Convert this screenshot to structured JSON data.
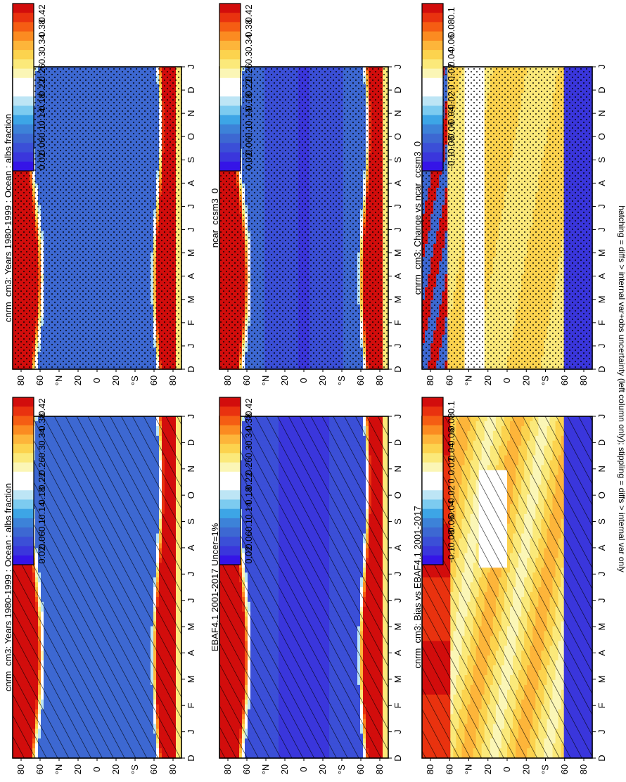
{
  "figure": {
    "footnote": "hatching = diffs > internal var+obs uncertainty (left column only); stippling = diffs > internal var only"
  },
  "chart_data": [
    {
      "type": "heatmap",
      "title": "cnrm_cm3: Years 1980-1999 : Ocean : albs fraction",
      "field": "albedo",
      "overlay": "hatching",
      "x_labels": [
        "D",
        "J",
        "F",
        "M",
        "A",
        "M",
        "J",
        "J",
        "A",
        "S",
        "O",
        "N",
        "D",
        "J"
      ],
      "y_labels": [
        "80",
        "60",
        "°N",
        "20",
        "0",
        "20",
        "°S",
        "60",
        "80"
      ],
      "colorbar": {
        "labels": [
          "0.42",
          "0.38",
          "0.34",
          "0.3",
          "0.26",
          "0.22",
          "0.18",
          "0.14",
          "0.1",
          "0.06",
          "0.02"
        ]
      }
    },
    {
      "type": "heatmap",
      "title": "cnrm_cm3: Years 1980-1999 : Ocean : albs fraction",
      "field": "albedo",
      "overlay": "stipple",
      "x_labels": [
        "D",
        "J",
        "F",
        "M",
        "A",
        "M",
        "J",
        "J",
        "A",
        "S",
        "O",
        "N",
        "D",
        "J"
      ],
      "y_labels": [
        "80",
        "60",
        "°N",
        "20",
        "0",
        "20",
        "°S",
        "60",
        "80"
      ],
      "colorbar": {
        "labels": [
          "0.42",
          "0.38",
          "0.34",
          "0.3",
          "0.26",
          "0.22",
          "0.18",
          "0.14",
          "0.1",
          "0.06",
          "0.02"
        ]
      }
    },
    {
      "type": "heatmap",
      "title": "EBAF4.1 2001-2017 Uncer=1%",
      "field": "albedo_obs",
      "overlay": "hatching",
      "x_labels": [
        "D",
        "J",
        "F",
        "M",
        "A",
        "M",
        "J",
        "J",
        "A",
        "S",
        "O",
        "N",
        "D",
        "J"
      ],
      "y_labels": [
        "80",
        "60",
        "°N",
        "20",
        "0",
        "20",
        "°S",
        "60",
        "80"
      ],
      "colorbar": {
        "labels": [
          "0.42",
          "0.38",
          "0.34",
          "0.3",
          "0.26",
          "0.22",
          "0.18",
          "0.14",
          "0.1",
          "0.06",
          "0.02"
        ]
      }
    },
    {
      "type": "heatmap",
      "title": "ncar_ccsm3_0",
      "field": "albedo_ref",
      "overlay": "stipple",
      "x_labels": [
        "D",
        "J",
        "F",
        "M",
        "A",
        "M",
        "J",
        "J",
        "A",
        "S",
        "O",
        "N",
        "D",
        "J"
      ],
      "y_labels": [
        "80",
        "60",
        "°N",
        "20",
        "0",
        "20",
        "°S",
        "60",
        "80"
      ],
      "colorbar": {
        "labels": [
          "0.42",
          "0.38",
          "0.34",
          "0.3",
          "0.26",
          "0.22",
          "0.18",
          "0.14",
          "0.1",
          "0.06",
          "0.02"
        ]
      }
    },
    {
      "type": "heatmap",
      "title": "cnrm_cm3: Bias vs EBAF4.1 2001-2017",
      "field": "bias",
      "overlay": "hatching",
      "x_labels": [
        "D",
        "J",
        "F",
        "M",
        "A",
        "M",
        "J",
        "J",
        "A",
        "S",
        "O",
        "N",
        "D",
        "J"
      ],
      "y_labels": [
        "80",
        "60",
        "°N",
        "20",
        "0",
        "20",
        "°S",
        "60",
        "80"
      ],
      "colorbar": {
        "labels": [
          "0.1",
          "0.08",
          "0.06",
          "0.04",
          "0.02",
          "0",
          "-0.02",
          "-0.04",
          "-0.06",
          "-0.08",
          "-0.1"
        ]
      }
    },
    {
      "type": "heatmap",
      "title": "cnrm_cm3: Change vs ncar_ccsm3_0",
      "field": "change",
      "overlay": "stipple",
      "x_labels": [
        "D",
        "J",
        "F",
        "M",
        "A",
        "M",
        "J",
        "J",
        "A",
        "S",
        "O",
        "N",
        "D",
        "J"
      ],
      "y_labels": [
        "80",
        "60",
        "°N",
        "20",
        "0",
        "20",
        "°S",
        "60",
        "80"
      ],
      "colorbar": {
        "labels": [
          "0.1",
          "0.08",
          "0.06",
          "0.04",
          "0.02",
          "0",
          "-0.02",
          "-0.04",
          "-0.06",
          "-0.08",
          "-0.1"
        ]
      }
    }
  ],
  "palette": {
    "colors": [
      "#d20d0c",
      "#e9320f",
      "#f55d13",
      "#fb8b21",
      "#fdb53a",
      "#fcd34e",
      "#fbe97a",
      "#fbf6b6",
      "#ffffff",
      "#ffffff",
      "#bde5f5",
      "#7ccbf0",
      "#3da5e6",
      "#3d82d8",
      "#3d68d2",
      "#3b4fd7",
      "#3a36dc",
      "#3514e7"
    ]
  }
}
